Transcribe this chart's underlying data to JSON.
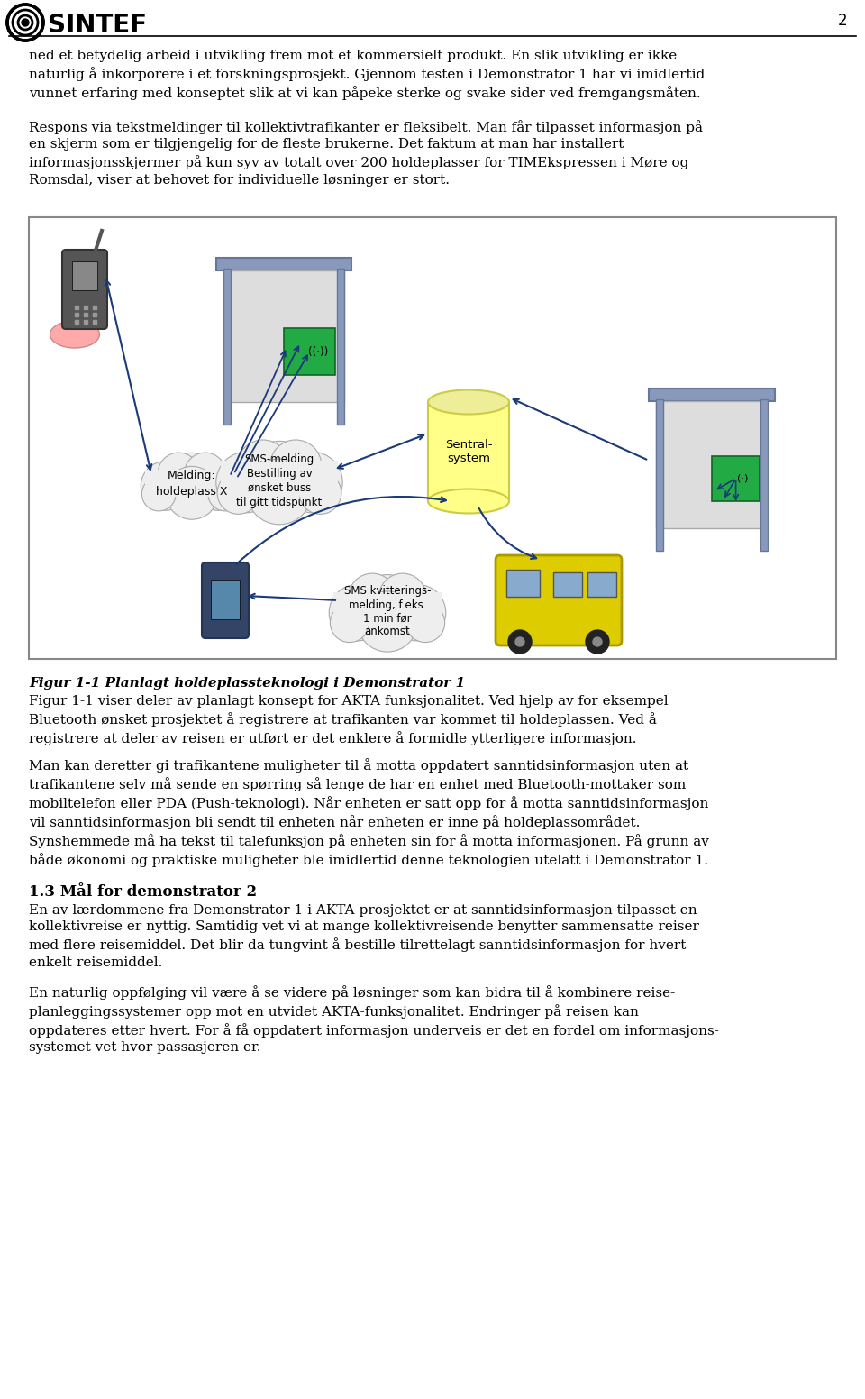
{
  "page_number": "2",
  "logo_text": "SINTEF",
  "para1": "ned et betydelig arbeid i utvikling frem mot et kommersielt produkt. En slik utvikling er ikke\nnaturlig å inkorporere i et forskningsprosjekt. Gjennom testen i Demonstrator 1 har vi imidlertid\nvunnet erfaring med konseptet slik at vi kan påpeke sterke og svake sider ved fremgangsmåten.",
  "para2": "Respons via tekstmeldinger til kollektivtrafikanter er fleksibelt. Man får tilpasset informasjon på\nen skjerm som er tilgjengelig for de fleste brukerne. Det faktum at man har installert\ninformasjonsskjermer på kun syv av totalt over 200 holdeplasser for TIMEkspressen i Møre og\nRomsdal, viser at behovet for individuelle løsninger er stort.",
  "fig_caption_italic_bold": "Figur 1-1 Planlagt holdeplassteknologi i Demonstrator 1",
  "fig_caption_normal": "Figur 1-1 viser deler av planlagt konsept for AKTA funksjonalitet. Ved hjelp av for eksempel\nBluetooth ønsket prosjektet å registrere at trafikanten var kommet til holdeplassen. Ved å\nregistrere at deler av reisen er utført er det enklere å formidle ytterligere informasjon.",
  "para3": "Man kan deretter gi trafikantene muligheter til å motta oppdatert sanntidsinformasjon uten at\ntrafikantene selv må sende en spørring så lenge de har en enhet med Bluetooth-mottaker som\nmobiltelefon eller PDA (Push-teknologi). Når enheten er satt opp for å motta sanntidsinformasjon\nvil sanntidsinformasjon bli sendt til enheten når enheten er inne på holdeplassområdet.\nSynshemmede må ha tekst til talefunksjon på enheten sin for å motta informasjonen. På grunn av\nbåde økonomi og praktiske muligheter ble imidlertid denne teknologien utelatt i Demonstrator 1.",
  "section_heading": "1.3 Mål for demonstrator 2",
  "para4": "En av lærdommene fra Demonstrator 1 i AKTA-prosjektet er at sanntidsinformasjon tilpasset en\nkollektivreise er nyttig. Samtidig vet vi at mange kollektivreisende benytter sammensatte reiser\nmed flere reisemiddel. Det blir da tungvint å bestille tilrettelagt sanntidsinformasjon for hvert\nenkelt reisemiddel.",
  "para5": "En naturlig oppfølging vil være å se videre på løsninger som kan bidra til å kombinere reise-\nplanleggingssystemer opp mot en utvidet AKTA-funksjonalitet. Endringer på reisen kan\noppdateres etter hvert. For å få oppdatert informasjon underveis er det en fordel om informasjons-\nsystemet vet hvor passasjeren er.",
  "bg_color": "#ffffff",
  "text_color": "#000000",
  "arrow_color": "#1a3a7a",
  "roof_color": "#8899bb",
  "panel_color": "#cccccc",
  "screen_color": "#228833",
  "cylinder_fill": "#ffff88",
  "cylinder_edge": "#cccc44",
  "cloud_fill": "#eeeeee",
  "cloud_edge": "#aaaaaa",
  "font_size_body": 11.0,
  "font_size_heading": 12.0,
  "font_size_caption": 11.0
}
